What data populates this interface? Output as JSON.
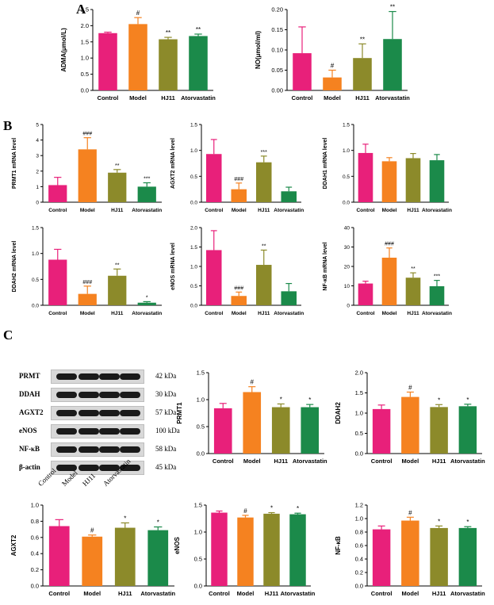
{
  "panel_labels": {
    "a": "A",
    "b": "B",
    "c": "C"
  },
  "colors": {
    "control": "#e8207a",
    "model": "#f58220",
    "hj11": "#8c8a2a",
    "atorvastatin": "#1b8a4a"
  },
  "western_blot": {
    "rows": [
      {
        "name": "PRMT",
        "kda": "42 kDa"
      },
      {
        "name": "DDAH",
        "kda": "30 kDa"
      },
      {
        "name": "AGXT2",
        "kda": "57 kDa"
      },
      {
        "name": "eNOS",
        "kda": "100 kDa"
      },
      {
        "name": "NF-κB",
        "kda": "58 kDa"
      },
      {
        "name": "β-actin",
        "kda": "45 kDa"
      }
    ],
    "lanes": [
      "Control",
      "Model",
      "HJ11",
      "Atorvastatin"
    ]
  },
  "chart_data": [
    {
      "type": "bar",
      "categories": [
        "Control",
        "Model",
        "HJ11",
        "Atorvastatin"
      ],
      "values": [
        1.77,
        2.05,
        1.58,
        1.68
      ],
      "errors": [
        0.03,
        0.2,
        0.06,
        0.06
      ],
      "sig": [
        "",
        "#",
        "**",
        "**"
      ],
      "ylabel": "ADMA(μmol/L)",
      "ylim": [
        0,
        2.5
      ],
      "ticks": [
        0,
        0.5,
        1.0,
        1.5,
        2.0,
        2.5
      ],
      "tick_labels": [
        "0.0",
        "0.5",
        "1.0",
        "1.5",
        "2.0",
        "2.5"
      ],
      "title": "",
      "xlabel": ""
    },
    {
      "type": "bar",
      "categories": [
        "Control",
        "Model",
        "HJ11",
        "Atorvastatin"
      ],
      "values": [
        0.092,
        0.032,
        0.08,
        0.127
      ],
      "errors": [
        0.065,
        0.018,
        0.035,
        0.068
      ],
      "sig": [
        "",
        "#",
        "**",
        "**"
      ],
      "ylabel": "NO(μmol/ml)",
      "ylim": [
        0,
        0.2
      ],
      "ticks": [
        0,
        0.05,
        0.1,
        0.15,
        0.2
      ],
      "tick_labels": [
        "0.00",
        "0.05",
        "0.10",
        "0.15",
        "0.20"
      ],
      "title": "",
      "xlabel": ""
    },
    {
      "type": "bar",
      "categories": [
        "Control",
        "Model",
        "HJ11",
        "Atorvastatin"
      ],
      "values": [
        1.1,
        3.4,
        1.9,
        1.0
      ],
      "errors": [
        0.5,
        0.75,
        0.2,
        0.25
      ],
      "sig": [
        "",
        "###",
        "**",
        "***"
      ],
      "ylabel": "PRMT1 mRNA level",
      "ylim": [
        0,
        5
      ],
      "ticks": [
        0,
        1,
        2,
        3,
        4,
        5
      ],
      "tick_labels": [
        "0",
        "1",
        "2",
        "3",
        "4",
        "5"
      ],
      "title": "",
      "xlabel": ""
    },
    {
      "type": "bar",
      "categories": [
        "Control",
        "Model",
        "HJ11",
        "Atorvastatin"
      ],
      "values": [
        0.93,
        0.25,
        0.77,
        0.21
      ],
      "errors": [
        0.28,
        0.12,
        0.12,
        0.08
      ],
      "sig": [
        "",
        "###",
        "***",
        ""
      ],
      "ylabel": "AGXT2 mRNA level",
      "ylim": [
        0,
        1.5
      ],
      "ticks": [
        0,
        0.5,
        1.0,
        1.5
      ],
      "tick_labels": [
        "0.0",
        "0.5",
        "1.0",
        "1.5"
      ],
      "title": "",
      "xlabel": ""
    },
    {
      "type": "bar",
      "categories": [
        "Control",
        "Model",
        "HJ11",
        "Atorvastatin"
      ],
      "values": [
        0.95,
        0.79,
        0.85,
        0.81
      ],
      "errors": [
        0.17,
        0.07,
        0.09,
        0.11
      ],
      "sig": [
        "",
        "",
        "",
        ""
      ],
      "ylabel": "DDAH1 mRNA level",
      "ylim": [
        0,
        1.5
      ],
      "ticks": [
        0,
        0.5,
        1.0,
        1.5
      ],
      "tick_labels": [
        "0.0",
        "0.5",
        "1.0",
        "1.5"
      ],
      "title": "",
      "xlabel": ""
    },
    {
      "type": "bar",
      "categories": [
        "Control",
        "Model",
        "HJ11",
        "Atorvastatin"
      ],
      "values": [
        0.88,
        0.22,
        0.57,
        0.05
      ],
      "errors": [
        0.2,
        0.15,
        0.13,
        0.02
      ],
      "sig": [
        "",
        "###",
        "**",
        "*"
      ],
      "ylabel": "DDAH2 mRNA level",
      "ylim": [
        0,
        1.5
      ],
      "ticks": [
        0,
        0.5,
        1.0,
        1.5
      ],
      "tick_labels": [
        "0.0",
        "0.5",
        "1.0",
        "1.5"
      ],
      "title": "",
      "xlabel": ""
    },
    {
      "type": "bar",
      "categories": [
        "Control",
        "Model",
        "HJ11",
        "Atorvastatin"
      ],
      "values": [
        1.42,
        0.24,
        1.04,
        0.36
      ],
      "errors": [
        0.5,
        0.1,
        0.38,
        0.2
      ],
      "sig": [
        "",
        "###",
        "**",
        ""
      ],
      "ylabel": "eNOS mRNA level",
      "ylim": [
        0,
        2.0
      ],
      "ticks": [
        0,
        0.5,
        1.0,
        1.5,
        2.0
      ],
      "tick_labels": [
        "0.0",
        "0.5",
        "1.0",
        "1.5",
        "2.0"
      ],
      "title": "",
      "xlabel": ""
    },
    {
      "type": "bar",
      "categories": [
        "Control",
        "Model",
        "HJ11",
        "Atorvastatin"
      ],
      "values": [
        11.2,
        24.5,
        14.2,
        9.8
      ],
      "errors": [
        1.2,
        5.0,
        2.5,
        3.0
      ],
      "sig": [
        "",
        "###",
        "**",
        "***"
      ],
      "ylabel": "NF-κB mRNA level",
      "ylim": [
        0,
        40
      ],
      "ticks": [
        0,
        10,
        20,
        30,
        40
      ],
      "tick_labels": [
        "0",
        "10",
        "20",
        "30",
        "40"
      ],
      "title": "",
      "xlabel": ""
    },
    {
      "type": "bar",
      "categories": [
        "Control",
        "Model",
        "HJ11",
        "Atorvastatin"
      ],
      "values": [
        0.84,
        1.14,
        0.86,
        0.86
      ],
      "errors": [
        0.09,
        0.1,
        0.06,
        0.05
      ],
      "sig": [
        "",
        "#",
        "*",
        "*"
      ],
      "ylabel": "PRMT1",
      "ylim": [
        0,
        1.5
      ],
      "ticks": [
        0,
        0.5,
        1.0,
        1.5
      ],
      "tick_labels": [
        "0.0",
        "0.5",
        "1.0",
        "1.5"
      ],
      "title": "",
      "xlabel": ""
    },
    {
      "type": "bar",
      "categories": [
        "Control",
        "Model",
        "HJ11",
        "Atorvastatin"
      ],
      "values": [
        1.1,
        1.4,
        1.15,
        1.17
      ],
      "errors": [
        0.1,
        0.12,
        0.06,
        0.05
      ],
      "sig": [
        "",
        "#",
        "*",
        "*"
      ],
      "ylabel": "DDAH2",
      "ylim": [
        0,
        2.0
      ],
      "ticks": [
        0,
        0.5,
        1.0,
        1.5,
        2.0
      ],
      "tick_labels": [
        "0.0",
        "0.5",
        "1.0",
        "1.5",
        "2.0"
      ],
      "title": "",
      "xlabel": ""
    },
    {
      "type": "bar",
      "categories": [
        "Control",
        "Model",
        "HJ11",
        "Atorvastatin"
      ],
      "values": [
        0.74,
        0.61,
        0.72,
        0.69
      ],
      "errors": [
        0.08,
        0.02,
        0.06,
        0.04
      ],
      "sig": [
        "",
        "#",
        "*",
        "*"
      ],
      "ylabel": "AGXT2",
      "ylim": [
        0,
        1.0
      ],
      "ticks": [
        0,
        0.2,
        0.4,
        0.6,
        0.8,
        1.0
      ],
      "tick_labels": [
        "0.0",
        "0.2",
        "0.4",
        "0.6",
        "0.8",
        "1.0"
      ],
      "title": "",
      "xlabel": ""
    },
    {
      "type": "bar",
      "categories": [
        "Control",
        "Model",
        "HJ11",
        "Atorvastatin"
      ],
      "values": [
        1.36,
        1.27,
        1.34,
        1.33
      ],
      "errors": [
        0.03,
        0.04,
        0.02,
        0.02
      ],
      "sig": [
        "",
        "#",
        "*",
        "*"
      ],
      "ylabel": "eNOS",
      "ylim": [
        0,
        1.5
      ],
      "ticks": [
        0,
        0.5,
        1.0,
        1.5
      ],
      "tick_labels": [
        "0.0",
        "0.5",
        "1.0",
        "1.5"
      ],
      "title": "",
      "xlabel": ""
    },
    {
      "type": "bar",
      "categories": [
        "Control",
        "Model",
        "HJ11",
        "Atorvastatin"
      ],
      "values": [
        0.84,
        0.97,
        0.86,
        0.86
      ],
      "errors": [
        0.05,
        0.05,
        0.03,
        0.02
      ],
      "sig": [
        "",
        "#",
        "*",
        "*"
      ],
      "ylabel": "NF-κB",
      "ylim": [
        0,
        1.2
      ],
      "ticks": [
        0,
        0.2,
        0.4,
        0.6,
        0.8,
        1.0,
        1.2
      ],
      "tick_labels": [
        "0.0",
        "0.2",
        "0.4",
        "0.6",
        "0.8",
        "1.0",
        "1.2"
      ],
      "title": "",
      "xlabel": ""
    }
  ]
}
